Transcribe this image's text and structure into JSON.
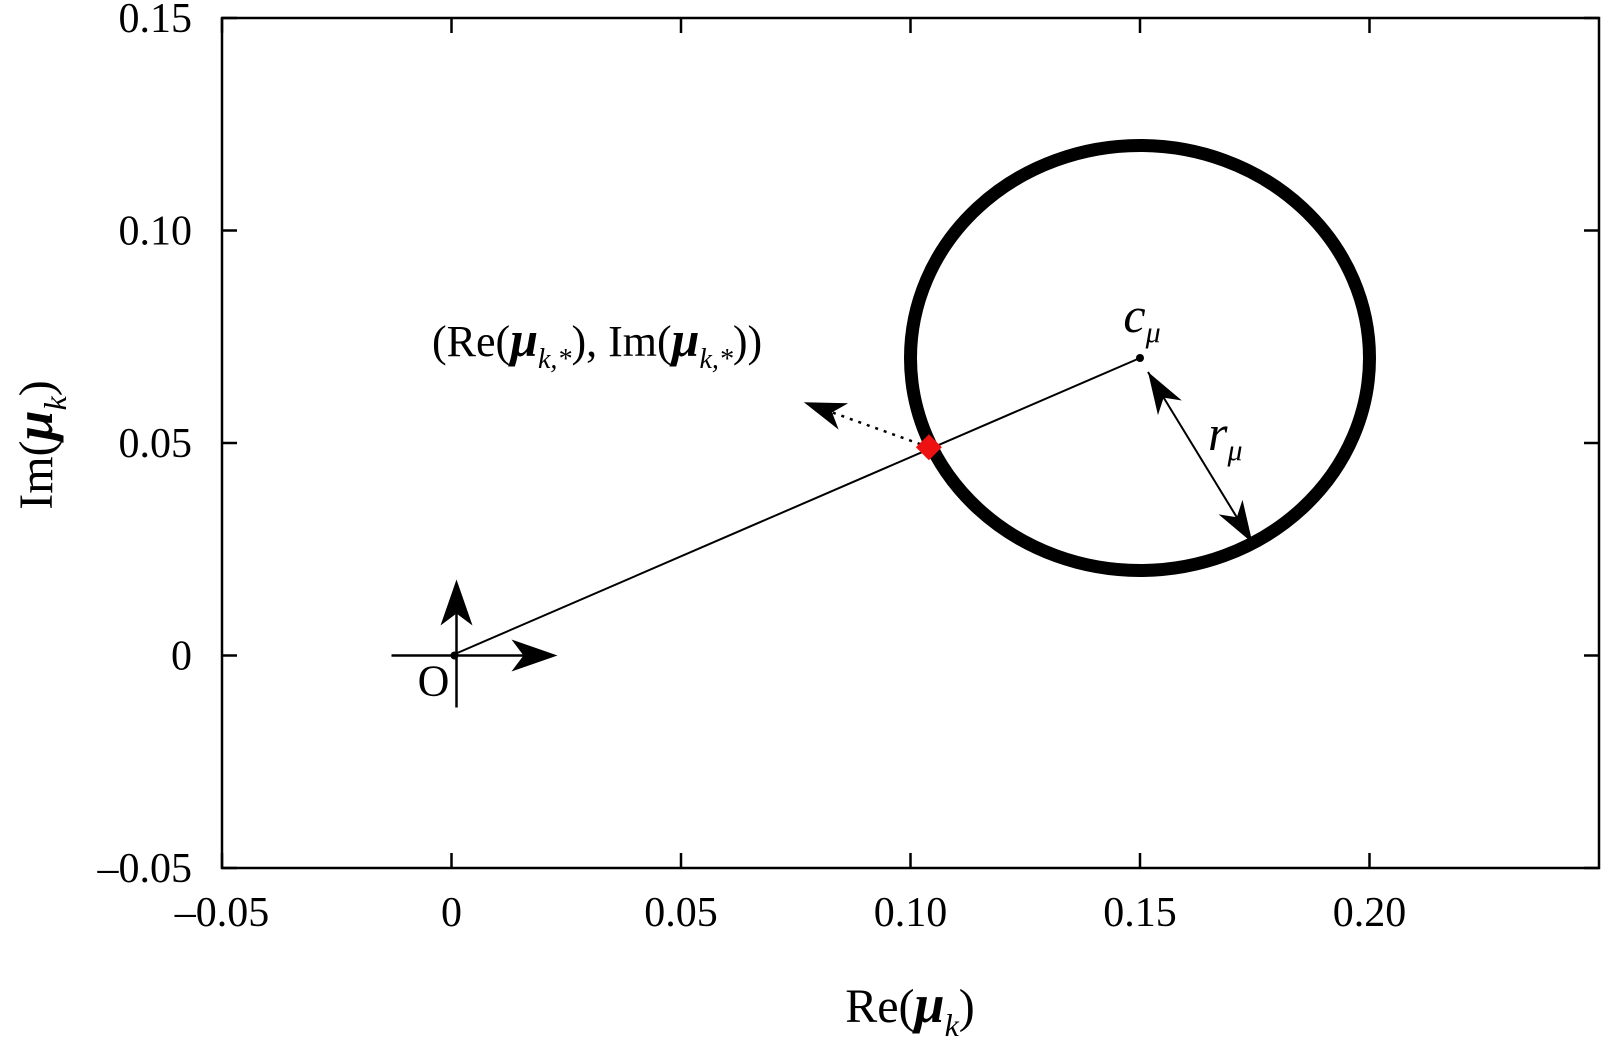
{
  "chart_data": {
    "type": "scatter",
    "title": "",
    "xlabel": {
      "prefix": "Re(",
      "var": "μ",
      "sub": "k",
      "suffix": ")"
    },
    "ylabel": {
      "prefix": "Im(",
      "var": "μ",
      "sub": "k",
      "suffix": ")"
    },
    "xlim": [
      -0.05,
      0.25
    ],
    "ylim": [
      -0.05,
      0.15
    ],
    "x_ticks": [
      -0.05,
      0,
      0.05,
      0.1,
      0.15,
      0.2
    ],
    "x_tick_labels": [
      "–0.05",
      "0",
      "0.05",
      "0.10",
      "0.15",
      "0.20"
    ],
    "y_ticks": [
      -0.05,
      0,
      0.05,
      0.1,
      0.15
    ],
    "y_tick_labels": [
      "–0.05",
      "0",
      "0.05",
      "0.10",
      "0.15"
    ],
    "grid": false,
    "circle": {
      "center": [
        0.15,
        0.07
      ],
      "radius": 0.05,
      "color": "#000000"
    },
    "center_point": [
      0.15,
      0.07
    ],
    "origin": [
      0,
      0
    ],
    "origin_label": "O",
    "intersection_point": {
      "x": 0.104,
      "y": 0.049,
      "color": "#ee1111"
    },
    "center_label": {
      "var": "c",
      "sub": "μ"
    },
    "radius_label": {
      "var": "r",
      "sub": "μ"
    },
    "point_label": {
      "part1": "(Re(",
      "var1": "μ",
      "sub1": "k,*",
      "part2": "), Im(",
      "var2": "μ",
      "sub2": "k,*",
      "part3": "))"
    }
  }
}
